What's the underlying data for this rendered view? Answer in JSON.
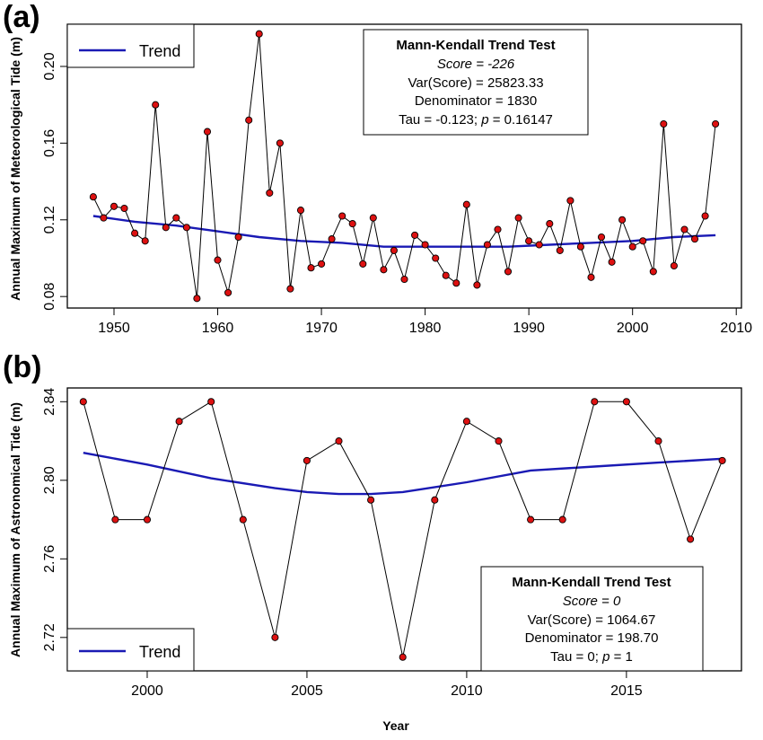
{
  "chart_data": [
    {
      "panel_label": "(a)",
      "type": "line",
      "ylabel": "Annual Maximum of Meteorological Tide (m)",
      "xlabel": "",
      "xlim": [
        1945.5,
        2010.5
      ],
      "ylim": [
        0.074,
        0.222
      ],
      "xticks": [
        1950,
        1960,
        1970,
        1980,
        1990,
        2000,
        2010
      ],
      "yticks": [
        "0.08",
        "0.12",
        "0.16",
        "0.20"
      ],
      "legend": {
        "label": "Trend",
        "position": "top-left"
      },
      "stats_box": {
        "title": "Mann-Kendall Trend Test",
        "score": "Score = -226",
        "var": "Var(Score) = 25823.33",
        "denominator": "Denominator = 1830",
        "tau_prefix": "Tau = -0.123; ",
        "p_letter": "p",
        "p_value": " = 0.16147",
        "position": "top-center"
      },
      "series": [
        {
          "x": [
            1948,
            1949,
            1950,
            1951,
            1952,
            1953,
            1954,
            1955,
            1956,
            1957,
            1958,
            1959,
            1960,
            1961,
            1962,
            1963,
            1964,
            1965,
            1966,
            1967,
            1968,
            1969,
            1970,
            1971,
            1972,
            1973,
            1974,
            1975,
            1976,
            1977,
            1978,
            1979,
            1980,
            1981,
            1982,
            1983,
            1984,
            1985,
            1986,
            1987,
            1988,
            1989,
            1990,
            1991,
            1992,
            1993,
            1994,
            1995,
            1996,
            1997,
            1998,
            1999,
            2000,
            2001,
            2002,
            2003,
            2004,
            2005,
            2006,
            2007,
            2008
          ],
          "values": [
            0.132,
            0.121,
            0.127,
            0.126,
            0.113,
            0.109,
            0.18,
            0.116,
            0.121,
            0.116,
            0.079,
            0.166,
            0.099,
            0.082,
            0.111,
            0.172,
            0.217,
            0.134,
            0.16,
            0.084,
            0.125,
            0.095,
            0.097,
            0.11,
            0.122,
            0.118,
            0.097,
            0.121,
            0.094,
            0.104,
            0.089,
            0.112,
            0.107,
            0.1,
            0.091,
            0.087,
            0.128,
            0.086,
            0.107,
            0.115,
            0.093,
            0.121,
            0.109,
            0.107,
            0.118,
            0.104,
            0.13,
            0.106,
            0.09,
            0.111,
            0.098,
            0.12,
            0.106,
            0.109,
            0.093,
            0.17,
            0.096,
            0.115,
            0.11,
            0.122,
            0.17
          ]
        },
        {
          "name": "Trend",
          "x": [
            1948,
            1952,
            1956,
            1960,
            1964,
            1968,
            1972,
            1976,
            1980,
            1984,
            1988,
            1992,
            1996,
            2000,
            2004,
            2008
          ],
          "values": [
            0.122,
            0.119,
            0.117,
            0.114,
            0.111,
            0.109,
            0.108,
            0.106,
            0.106,
            0.106,
            0.106,
            0.107,
            0.108,
            0.109,
            0.111,
            0.112
          ]
        }
      ]
    },
    {
      "panel_label": "(b)",
      "type": "line",
      "ylabel": "Annual Maximum of Astronomical Tide (m)",
      "xlabel": "Year",
      "xlim": [
        1997.5,
        2018.6
      ],
      "ylim": [
        2.703,
        2.847
      ],
      "xticks": [
        2000,
        2005,
        2010,
        2015
      ],
      "yticks": [
        "2.72",
        "2.76",
        "2.80",
        "2.84"
      ],
      "legend": {
        "label": "Trend",
        "position": "bottom-left"
      },
      "stats_box": {
        "title": "Mann-Kendall Trend Test",
        "score": "Score = 0",
        "var": "Var(Score) = 1064.67",
        "denominator": "Denominator = 198.70",
        "tau_prefix": "Tau = 0; ",
        "p_letter": "p",
        "p_value": " = 1",
        "position": "bottom-right"
      },
      "series": [
        {
          "x": [
            1998,
            1999,
            2000,
            2001,
            2002,
            2003,
            2004,
            2005,
            2006,
            2007,
            2008,
            2009,
            2010,
            2011,
            2012,
            2013,
            2014,
            2015,
            2016,
            2017,
            2018
          ],
          "values": [
            2.84,
            2.78,
            2.78,
            2.83,
            2.84,
            2.78,
            2.72,
            2.81,
            2.82,
            2.79,
            2.71,
            2.79,
            2.83,
            2.82,
            2.78,
            2.78,
            2.84,
            2.84,
            2.82,
            2.77,
            2.81
          ]
        },
        {
          "name": "Trend",
          "x": [
            1998,
            2000,
            2002,
            2004,
            2005,
            2006,
            2007,
            2008,
            2010,
            2012,
            2014,
            2016,
            2018
          ],
          "values": [
            2.814,
            2.808,
            2.801,
            2.796,
            2.794,
            2.793,
            2.793,
            2.794,
            2.799,
            2.805,
            2.807,
            2.809,
            2.811
          ]
        }
      ]
    }
  ]
}
